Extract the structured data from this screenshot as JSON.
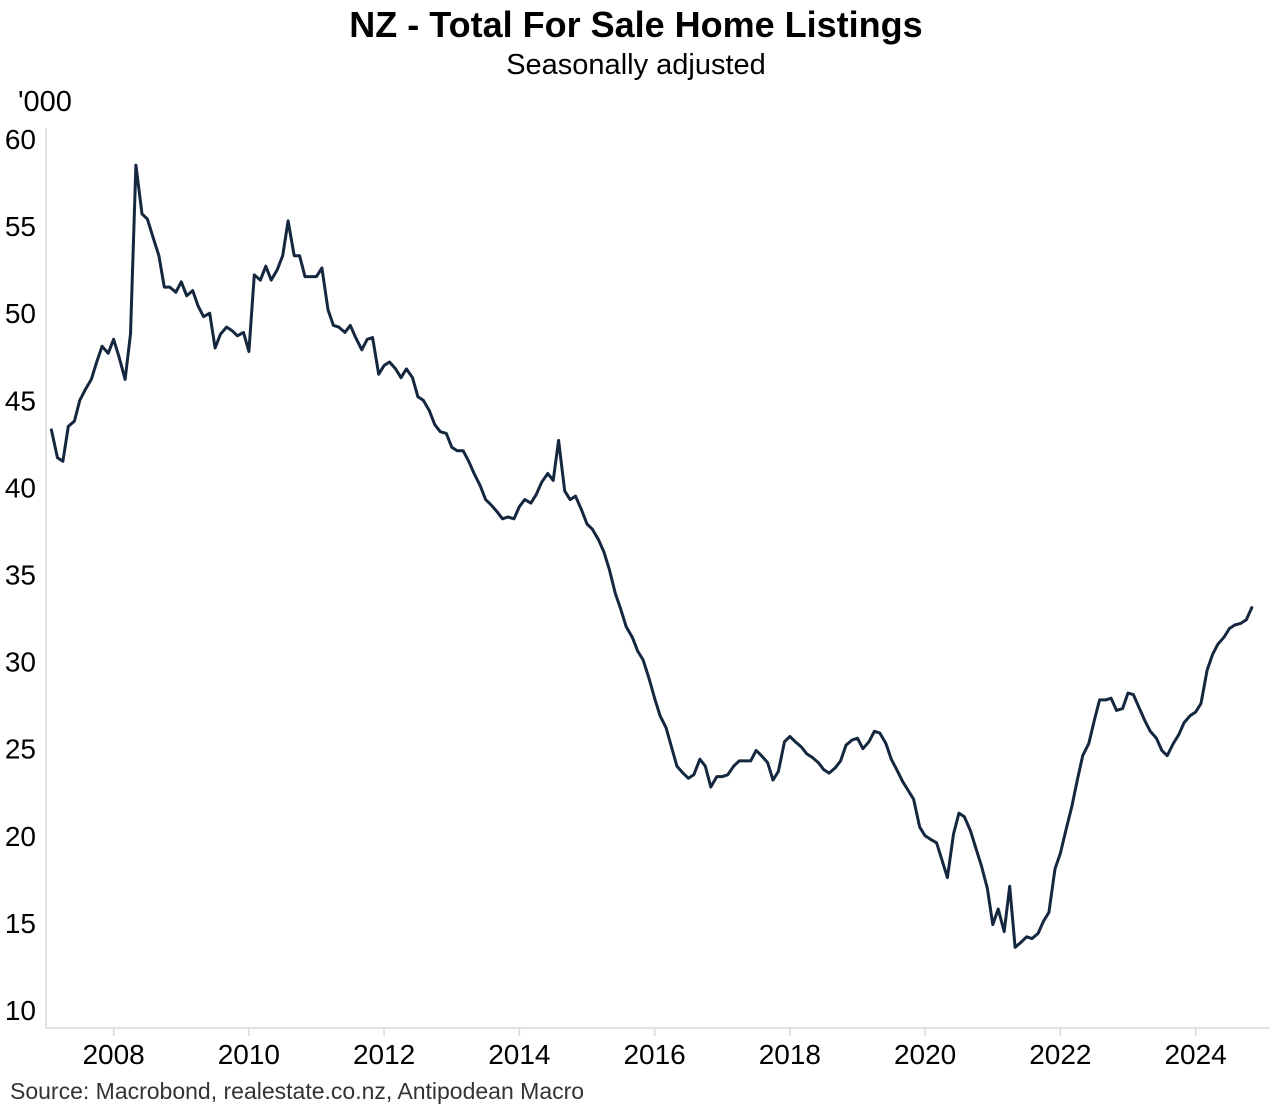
{
  "chart_data": {
    "type": "line",
    "title": "NZ - Total For Sale Home Listings",
    "subtitle": "Seasonally adjusted",
    "ylabel": "'000",
    "xlabel": "",
    "source": "Source: Macrobond, realestate.co.nz, Antipodean Macro",
    "ylim": [
      10,
      60
    ],
    "xlim": [
      2007.0,
      2025.7
    ],
    "y_ticks": [
      10,
      15,
      20,
      25,
      30,
      35,
      40,
      45,
      50,
      55,
      60
    ],
    "x_ticks": [
      2008,
      2010,
      2012,
      2014,
      2016,
      2018,
      2020,
      2022,
      2024
    ],
    "grid": false,
    "line_color": "#14273f",
    "series": [
      {
        "name": "",
        "x": [
          2007.08,
          2007.17,
          2007.25,
          2007.33,
          2007.42,
          2007.5,
          2007.58,
          2007.67,
          2007.75,
          2007.83,
          2007.92,
          2008.0,
          2008.08,
          2008.17,
          2008.25,
          2008.33,
          2008.42,
          2008.5,
          2008.58,
          2008.67,
          2008.75,
          2008.83,
          2008.92,
          2009.0,
          2009.08,
          2009.17,
          2009.25,
          2009.33,
          2009.42,
          2009.5,
          2009.58,
          2009.67,
          2009.75,
          2009.83,
          2009.92,
          2010.0,
          2010.08,
          2010.17,
          2010.25,
          2010.33,
          2010.42,
          2010.5,
          2010.58,
          2010.67,
          2010.75,
          2010.83,
          2010.92,
          2011.0,
          2011.08,
          2011.17,
          2011.25,
          2011.33,
          2011.42,
          2011.5,
          2011.58,
          2011.67,
          2011.75,
          2011.83,
          2011.92,
          2012.0,
          2012.08,
          2012.17,
          2012.25,
          2012.33,
          2012.42,
          2012.5,
          2012.58,
          2012.67,
          2012.75,
          2012.83,
          2012.92,
          2013.0,
          2013.08,
          2013.17,
          2013.25,
          2013.33,
          2013.42,
          2013.5,
          2013.58,
          2013.67,
          2013.75,
          2013.83,
          2013.92,
          2014.0,
          2014.08,
          2014.17,
          2014.25,
          2014.33,
          2014.42,
          2014.5,
          2014.58,
          2014.67,
          2014.75,
          2014.83,
          2014.92,
          2015.0,
          2015.08,
          2015.17,
          2015.25,
          2015.33,
          2015.42,
          2015.5,
          2015.58,
          2015.67,
          2015.75,
          2015.83,
          2015.92,
          2016.0,
          2016.08,
          2016.17,
          2016.25,
          2016.33,
          2016.42,
          2016.5,
          2016.58,
          2016.67,
          2016.75,
          2016.83,
          2016.92,
          2017.0,
          2017.08,
          2017.17,
          2017.25,
          2017.33,
          2017.42,
          2017.5,
          2017.58,
          2017.67,
          2017.75,
          2017.83,
          2017.92,
          2018.0,
          2018.08,
          2018.17,
          2018.25,
          2018.33,
          2018.42,
          2018.5,
          2018.58,
          2018.67,
          2018.75,
          2018.83,
          2018.92,
          2019.0,
          2019.08,
          2019.17,
          2019.25,
          2019.33,
          2019.42,
          2019.5,
          2019.58,
          2019.67,
          2019.75,
          2019.83,
          2019.92,
          2020.0,
          2020.08,
          2020.17,
          2020.25,
          2020.33,
          2020.42,
          2020.5,
          2020.58,
          2020.67,
          2020.75,
          2020.83,
          2020.92,
          2021.0,
          2021.08,
          2021.17,
          2021.25,
          2021.33,
          2021.42,
          2021.5,
          2021.58,
          2021.67,
          2021.75,
          2021.83,
          2021.92,
          2022.0,
          2022.08,
          2022.17,
          2022.25,
          2022.33,
          2022.42,
          2022.5,
          2022.58,
          2022.67,
          2022.75,
          2022.83,
          2022.92,
          2023.0,
          2023.08,
          2023.17,
          2023.25,
          2023.33,
          2023.42,
          2023.5,
          2023.58,
          2023.67,
          2023.75,
          2023.83,
          2023.92,
          2024.0,
          2024.08,
          2024.17,
          2024.25,
          2024.33,
          2024.42,
          2024.5,
          2024.58,
          2024.67,
          2024.75,
          2024.83
        ],
        "values": [
          43.3,
          41.7,
          41.5,
          43.5,
          43.8,
          45.0,
          45.6,
          46.2,
          47.2,
          48.1,
          47.7,
          48.5,
          47.5,
          46.2,
          48.8,
          58.5,
          55.7,
          55.4,
          54.4,
          53.3,
          51.5,
          51.5,
          51.2,
          51.8,
          51.0,
          51.3,
          50.4,
          49.8,
          50.0,
          48.0,
          48.8,
          49.2,
          49.0,
          48.7,
          48.9,
          47.8,
          52.2,
          51.9,
          52.7,
          51.9,
          52.5,
          53.3,
          55.3,
          53.3,
          53.3,
          52.1,
          52.1,
          52.1,
          52.6,
          50.2,
          49.3,
          49.2,
          48.9,
          49.3,
          48.6,
          47.9,
          48.5,
          48.6,
          46.5,
          47.0,
          47.2,
          46.8,
          46.3,
          46.8,
          46.3,
          45.2,
          45.0,
          44.4,
          43.6,
          43.2,
          43.1,
          42.3,
          42.1,
          42.1,
          41.5,
          40.8,
          40.1,
          39.3,
          39.0,
          38.6,
          38.2,
          38.3,
          38.2,
          38.9,
          39.3,
          39.1,
          39.6,
          40.3,
          40.8,
          40.4,
          42.7,
          39.8,
          39.3,
          39.5,
          38.7,
          37.9,
          37.6,
          37.0,
          36.3,
          35.3,
          33.9,
          33.0,
          32.0,
          31.4,
          30.6,
          30.1,
          29.0,
          27.9,
          26.9,
          26.2,
          25.1,
          24.0,
          23.6,
          23.3,
          23.5,
          24.4,
          24.0,
          22.8,
          23.4,
          23.4,
          23.5,
          24.0,
          24.3,
          24.3,
          24.3,
          24.9,
          24.6,
          24.2,
          23.2,
          23.7,
          25.4,
          25.7,
          25.4,
          25.1,
          24.7,
          24.5,
          24.2,
          23.8,
          23.6,
          23.9,
          24.3,
          25.2,
          25.5,
          25.6,
          25.0,
          25.4,
          26.0,
          25.9,
          25.3,
          24.4,
          23.8,
          23.1,
          22.6,
          22.1,
          20.5,
          20.0,
          19.8,
          19.6,
          18.6,
          17.6,
          20.1,
          21.3,
          21.1,
          20.3,
          19.3,
          18.3,
          17.0,
          14.9,
          15.8,
          14.5,
          17.1,
          13.6,
          13.9,
          14.2,
          14.1,
          14.4,
          15.1,
          15.6,
          18.1,
          19.0,
          20.3,
          21.7,
          23.2,
          24.6,
          25.3,
          26.6,
          27.8,
          27.8,
          27.9,
          27.2,
          27.3,
          28.2,
          28.1,
          27.3,
          26.6,
          26.0,
          25.6,
          24.9,
          24.6,
          25.3,
          25.8,
          26.5,
          26.9,
          27.1,
          27.6,
          29.5,
          30.4,
          31.0,
          31.4,
          31.9,
          32.1,
          32.2,
          32.4,
          33.1
        ]
      }
    ]
  }
}
